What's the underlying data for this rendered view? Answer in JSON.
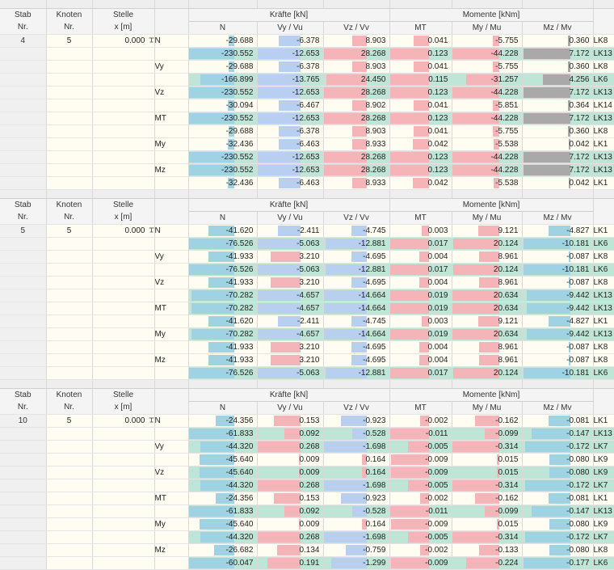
{
  "headers": {
    "stab": "Stab",
    "stab_nr": "Nr.",
    "knoten": "Knoten",
    "knoten_nr": "Nr.",
    "stelle": "Stelle",
    "stelle_x": "x [m]",
    "kraefte": "Kräfte [kN]",
    "momente": "Momente [kNm]",
    "n": "N",
    "vy": "Vy / Vu",
    "vz": "Vz / Vv",
    "mt": "MT",
    "my": "My / Mu",
    "mz": "Mz / Mv"
  },
  "blocks": [
    {
      "stab": "4",
      "knoten": "5",
      "x": "0.000",
      "rows": [
        {
          "type": "N",
          "hl": false,
          "n": "-29.688",
          "vy": "-6.378",
          "vz": "8.903",
          "mt": "0.041",
          "my": "-5.755",
          "mz": "0.360",
          "lk": "LK8"
        },
        {
          "type": "",
          "hl": true,
          "n": "-230.552",
          "vy": "-12.653",
          "vz": "28.268",
          "mt": "0.123",
          "my": "-44.228",
          "mz": "7.172",
          "lk": "LK13"
        },
        {
          "type": "Vy",
          "hl": false,
          "n": "-29.688",
          "vy": "-6.378",
          "vz": "8.903",
          "mt": "0.041",
          "my": "-5.755",
          "mz": "0.360",
          "lk": "LK8"
        },
        {
          "type": "",
          "hl": true,
          "n": "-166.899",
          "vy": "-13.765",
          "vz": "24.450",
          "mt": "0.115",
          "my": "-31.257",
          "mz": "4.256",
          "lk": "LK6"
        },
        {
          "type": "Vz",
          "hl": true,
          "n": "-230.552",
          "vy": "-12.653",
          "vz": "28.268",
          "mt": "0.123",
          "my": "-44.228",
          "mz": "7.172",
          "lk": "LK13"
        },
        {
          "type": "",
          "hl": false,
          "n": "-30.094",
          "vy": "-6.467",
          "vz": "8.902",
          "mt": "0.041",
          "my": "-5.851",
          "mz": "0.364",
          "lk": "LK14"
        },
        {
          "type": "MT",
          "hl": true,
          "n": "-230.552",
          "vy": "-12.653",
          "vz": "28.268",
          "mt": "0.123",
          "my": "-44.228",
          "mz": "7.172",
          "lk": "LK13"
        },
        {
          "type": "",
          "hl": false,
          "n": "-29.688",
          "vy": "-6.378",
          "vz": "8.903",
          "mt": "0.041",
          "my": "-5.755",
          "mz": "0.360",
          "lk": "LK8"
        },
        {
          "type": "My",
          "hl": false,
          "n": "-32.436",
          "vy": "-6.463",
          "vz": "8.933",
          "mt": "0.042",
          "my": "-5.538",
          "mz": "0.042",
          "lk": "LK1"
        },
        {
          "type": "",
          "hl": true,
          "n": "-230.552",
          "vy": "-12.653",
          "vz": "28.268",
          "mt": "0.123",
          "my": "-44.228",
          "mz": "7.172",
          "lk": "LK13"
        },
        {
          "type": "Mz",
          "hl": true,
          "n": "-230.552",
          "vy": "-12.653",
          "vz": "28.268",
          "mt": "0.123",
          "my": "-44.228",
          "mz": "7.172",
          "lk": "LK13"
        },
        {
          "type": "",
          "hl": false,
          "n": "-32.436",
          "vy": "-6.463",
          "vz": "8.933",
          "mt": "0.042",
          "my": "-5.538",
          "mz": "0.042",
          "lk": "LK1"
        }
      ]
    },
    {
      "stab": "5",
      "knoten": "5",
      "x": "0.000",
      "rows": [
        {
          "type": "N",
          "hl": false,
          "n": "-41.620",
          "vy": "-2.411",
          "vz": "-4.745",
          "mt": "0.003",
          "my": "9.121",
          "mz": "-4.827",
          "lk": "LK1"
        },
        {
          "type": "",
          "hl": true,
          "n": "-76.526",
          "vy": "-5.063",
          "vz": "-12.881",
          "mt": "0.017",
          "my": "20.124",
          "mz": "-10.181",
          "lk": "LK6"
        },
        {
          "type": "Vy",
          "hl": false,
          "n": "-41.933",
          "vy": "3.210",
          "vz": "-4.695",
          "mt": "0.004",
          "my": "8.961",
          "mz": "-0.087",
          "lk": "LK8"
        },
        {
          "type": "",
          "hl": true,
          "n": "-76.526",
          "vy": "-5.063",
          "vz": "-12.881",
          "mt": "0.017",
          "my": "20.124",
          "mz": "-10.181",
          "lk": "LK6"
        },
        {
          "type": "Vz",
          "hl": false,
          "n": "-41.933",
          "vy": "3.210",
          "vz": "-4.695",
          "mt": "0.004",
          "my": "8.961",
          "mz": "-0.087",
          "lk": "LK8"
        },
        {
          "type": "",
          "hl": true,
          "n": "-70.282",
          "vy": "-4.657",
          "vz": "-14.664",
          "mt": "0.019",
          "my": "20.634",
          "mz": "-9.442",
          "lk": "LK13"
        },
        {
          "type": "MT",
          "hl": true,
          "n": "-70.282",
          "vy": "-4.657",
          "vz": "-14.664",
          "mt": "0.019",
          "my": "20.634",
          "mz": "-9.442",
          "lk": "LK13"
        },
        {
          "type": "",
          "hl": false,
          "n": "-41.620",
          "vy": "-2.411",
          "vz": "-4.745",
          "mt": "0.003",
          "my": "9.121",
          "mz": "-4.827",
          "lk": "LK1"
        },
        {
          "type": "My",
          "hl": true,
          "n": "-70.282",
          "vy": "-4.657",
          "vz": "-14.664",
          "mt": "0.019",
          "my": "20.634",
          "mz": "-9.442",
          "lk": "LK13"
        },
        {
          "type": "",
          "hl": false,
          "n": "-41.933",
          "vy": "3.210",
          "vz": "-4.695",
          "mt": "0.004",
          "my": "8.961",
          "mz": "-0.087",
          "lk": "LK8"
        },
        {
          "type": "Mz",
          "hl": false,
          "n": "-41.933",
          "vy": "3.210",
          "vz": "-4.695",
          "mt": "0.004",
          "my": "8.961",
          "mz": "-0.087",
          "lk": "LK8"
        },
        {
          "type": "",
          "hl": true,
          "n": "-76.526",
          "vy": "-5.063",
          "vz": "-12.881",
          "mt": "0.017",
          "my": "20.124",
          "mz": "-10.181",
          "lk": "LK6"
        }
      ]
    },
    {
      "stab": "10",
      "knoten": "5",
      "x": "0.000",
      "rows": [
        {
          "type": "N",
          "hl": false,
          "n": "-24.356",
          "vy": "0.153",
          "vz": "-0.923",
          "mt": "-0.002",
          "my": "-0.162",
          "mz": "-0.081",
          "lk": "LK1"
        },
        {
          "type": "",
          "hl": true,
          "n": "-61.833",
          "vy": "0.092",
          "vz": "-0.528",
          "mt": "-0.011",
          "my": "-0.099",
          "mz": "-0.147",
          "lk": "LK13"
        },
        {
          "type": "Vy",
          "hl": true,
          "n": "-44.320",
          "vy": "0.268",
          "vz": "-1.698",
          "mt": "-0.005",
          "my": "-0.314",
          "mz": "-0.172",
          "lk": "LK7"
        },
        {
          "type": "",
          "hl": false,
          "n": "-45.640",
          "vy": "0.009",
          "vz": "0.164",
          "mt": "-0.009",
          "my": "0.015",
          "mz": "-0.080",
          "lk": "LK9"
        },
        {
          "type": "Vz",
          "hl": true,
          "n": "-45.640",
          "vy": "0.009",
          "vz": "0.164",
          "mt": "-0.009",
          "my": "0.015",
          "mz": "-0.080",
          "lk": "LK9"
        },
        {
          "type": "",
          "hl": true,
          "n": "-44.320",
          "vy": "0.268",
          "vz": "-1.698",
          "mt": "-0.005",
          "my": "-0.314",
          "mz": "-0.172",
          "lk": "LK7"
        },
        {
          "type": "MT",
          "hl": false,
          "n": "-24.356",
          "vy": "0.153",
          "vz": "-0.923",
          "mt": "-0.002",
          "my": "-0.162",
          "mz": "-0.081",
          "lk": "LK1"
        },
        {
          "type": "",
          "hl": true,
          "n": "-61.833",
          "vy": "0.092",
          "vz": "-0.528",
          "mt": "-0.011",
          "my": "-0.099",
          "mz": "-0.147",
          "lk": "LK13"
        },
        {
          "type": "My",
          "hl": false,
          "n": "-45.640",
          "vy": "0.009",
          "vz": "0.164",
          "mt": "-0.009",
          "my": "0.015",
          "mz": "-0.080",
          "lk": "LK9"
        },
        {
          "type": "",
          "hl": true,
          "n": "-44.320",
          "vy": "0.268",
          "vz": "-1.698",
          "mt": "-0.005",
          "my": "-0.314",
          "mz": "-0.172",
          "lk": "LK7"
        },
        {
          "type": "Mz",
          "hl": false,
          "n": "-26.682",
          "vy": "0.134",
          "vz": "-0.759",
          "mt": "-0.002",
          "my": "-0.133",
          "mz": "-0.080",
          "lk": "LK8"
        },
        {
          "type": "",
          "hl": true,
          "n": "-60.047",
          "vy": "0.191",
          "vz": "-1.299",
          "mt": "-0.009",
          "my": "-0.224",
          "mz": "-0.177",
          "lk": "LK6"
        }
      ]
    }
  ],
  "colors": {
    "highlight_row": "#bfe5d6",
    "normal_row": "#fffdf2",
    "bar_n": "#9fd2e3",
    "bar_v_blue": "#b8cff0",
    "bar_v_red": "#f4b4b8",
    "bar_m_gray": "#a9a9a9"
  },
  "icons": {
    "location_marker": "pin-icon"
  }
}
